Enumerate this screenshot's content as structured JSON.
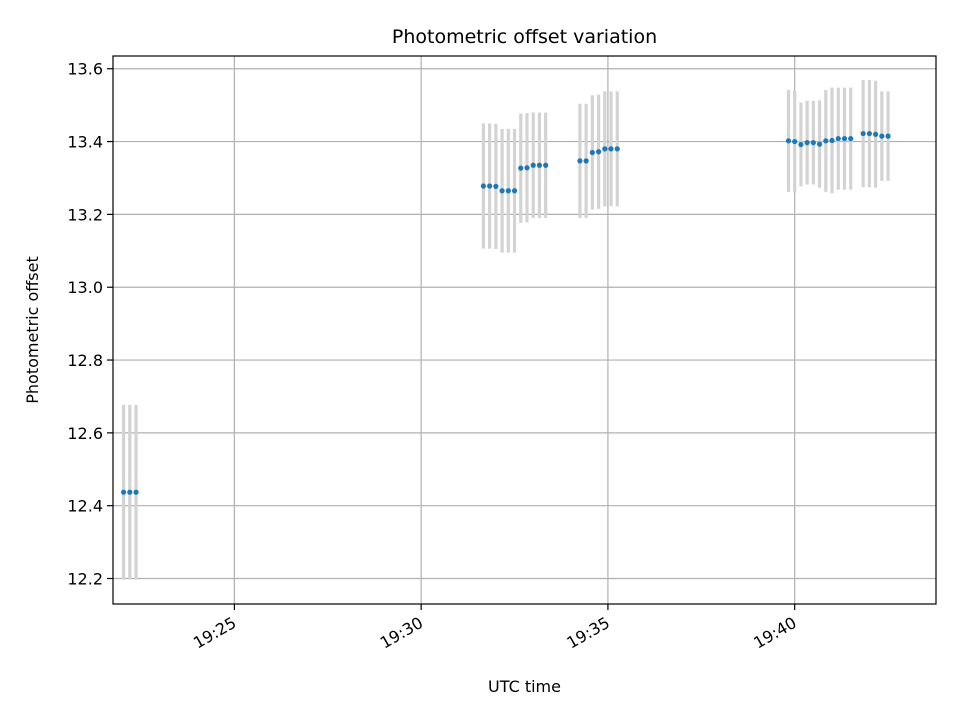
{
  "chart_data": {
    "type": "scatter",
    "title": "Photometric offset variation",
    "xlabel": "UTC time",
    "ylabel": "Photometric offset",
    "x_axis_kind": "time",
    "x_ticks": [
      "19:25",
      "19:30",
      "19:35",
      "19:40"
    ],
    "y_ticks": [
      "12.2",
      "12.4",
      "12.6",
      "12.8",
      "13.0",
      "13.2",
      "13.4",
      "13.6"
    ],
    "xlim": [
      "19:21:45",
      "19:43:47"
    ],
    "ylim": [
      12.13,
      13.635
    ],
    "grid": true,
    "colors": {
      "marker": "#1f77b4",
      "errorbar": "#d3d3d3",
      "grid": "#b0b0b0"
    },
    "series": [
      {
        "x": [
          "19:22:02",
          "19:22:12",
          "19:22:22",
          "19:31:40",
          "19:31:50",
          "19:32:00",
          "19:32:10",
          "19:32:20",
          "19:32:30",
          "19:32:40",
          "19:32:50",
          "19:33:00",
          "19:33:10",
          "19:33:20",
          "19:34:15",
          "19:34:25",
          "19:34:35",
          "19:34:45",
          "19:34:55",
          "19:35:05",
          "19:35:15",
          "19:39:50",
          "19:40:00",
          "19:40:10",
          "19:40:20",
          "19:40:30",
          "19:40:40",
          "19:40:50",
          "19:41:00",
          "19:41:10",
          "19:41:20",
          "19:41:30",
          "19:41:50",
          "19:42:00",
          "19:42:10",
          "19:42:20",
          "19:42:30"
        ],
        "y": [
          12.437,
          12.437,
          12.437,
          13.278,
          13.278,
          13.277,
          13.265,
          13.265,
          13.265,
          13.327,
          13.328,
          13.335,
          13.335,
          13.335,
          13.347,
          13.347,
          13.37,
          13.372,
          13.38,
          13.38,
          13.38,
          13.402,
          13.4,
          13.392,
          13.397,
          13.397,
          13.393,
          13.402,
          13.403,
          13.408,
          13.408,
          13.408,
          13.422,
          13.422,
          13.42,
          13.415,
          13.415
        ],
        "yerr": [
          0.24,
          0.24,
          0.24,
          0.172,
          0.172,
          0.172,
          0.17,
          0.17,
          0.17,
          0.15,
          0.15,
          0.145,
          0.145,
          0.145,
          0.157,
          0.157,
          0.157,
          0.157,
          0.158,
          0.158,
          0.158,
          0.14,
          0.14,
          0.115,
          0.115,
          0.115,
          0.12,
          0.14,
          0.145,
          0.14,
          0.14,
          0.14,
          0.147,
          0.147,
          0.147,
          0.123,
          0.123
        ]
      }
    ]
  }
}
